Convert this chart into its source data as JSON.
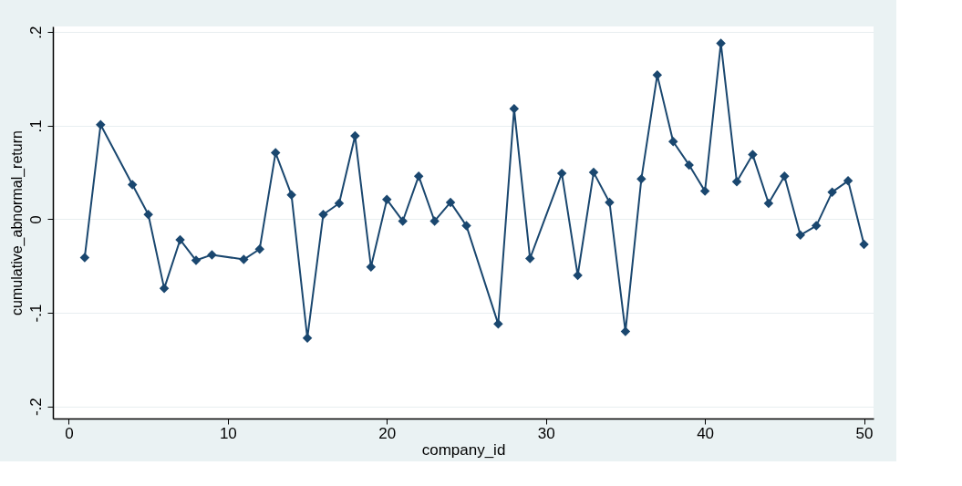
{
  "chart_data": {
    "type": "line",
    "xlabel": "company_id",
    "ylabel": "cumulative_abnormal_return",
    "x": [
      1,
      2,
      4,
      5,
      6,
      7,
      8,
      9,
      11,
      12,
      13,
      14,
      15,
      16,
      17,
      18,
      19,
      20,
      21,
      22,
      23,
      24,
      25,
      27,
      28,
      29,
      31,
      32,
      33,
      34,
      35,
      36,
      37,
      38,
      39,
      40,
      41,
      42,
      43,
      44,
      45,
      46,
      47,
      48,
      49,
      50
    ],
    "series": [
      {
        "color": "#1a476f",
        "values": [
          -0.041,
          0.101,
          0.037,
          0.005,
          -0.074,
          -0.022,
          -0.044,
          -0.038,
          -0.043,
          -0.032,
          0.071,
          0.026,
          -0.127,
          0.005,
          0.017,
          0.089,
          -0.051,
          0.021,
          -0.002,
          0.046,
          -0.002,
          0.018,
          -0.007,
          -0.112,
          0.118,
          -0.042,
          0.049,
          -0.06,
          0.05,
          0.018,
          -0.12,
          0.043,
          0.154,
          0.083,
          0.058,
          0.03,
          0.188,
          0.04,
          0.069,
          0.017,
          0.046,
          -0.017,
          -0.007,
          0.029,
          0.041,
          -0.027
        ]
      }
    ],
    "xlim": [
      -1,
      50.6
    ],
    "ylim": [
      -0.213,
      0.206
    ],
    "xticks": [
      0,
      10,
      20,
      30,
      40,
      50
    ],
    "yticks": [
      {
        "value": -0.2,
        "label": "-.2"
      },
      {
        "value": -0.1,
        "label": "-.1"
      },
      0,
      {
        "value": 0.1,
        "label": ".1"
      },
      {
        "value": 0.2,
        "label": ".2"
      }
    ],
    "grid": "y",
    "marker": "diamond",
    "line_style": "solid"
  }
}
